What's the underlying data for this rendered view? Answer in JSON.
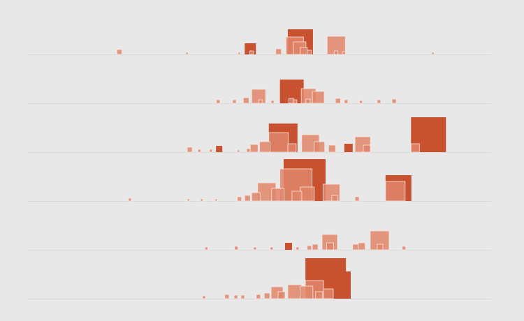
{
  "chart_data": [
    {
      "type": "square-strip",
      "xlim": [
        0,
        100
      ],
      "ylim": [
        0,
        70
      ],
      "series": [
        {
          "color": "#c8522f",
          "x": [
            56.1,
            46.8
          ],
          "values": [
            36,
            16
          ]
        },
        {
          "color": "#e0856a",
          "x": [
            64.6,
            55.7,
            57.3,
            19.2,
            53.5,
            58.8,
            60.3,
            47.9,
            66.1,
            67.9,
            34.1,
            87.2,
            45.4
          ],
          "values": [
            26,
            25,
            18,
            7,
            8,
            10,
            6,
            5,
            5,
            4,
            3,
            3,
            3
          ]
        }
      ]
    },
    {
      "type": "square-strip",
      "xlim": [
        0,
        100
      ],
      "ylim": [
        0,
        70
      ],
      "series": [
        {
          "color": "#c8522f",
          "x": [
            54.4
          ],
          "values": [
            34
          ]
        },
        {
          "color": "#e0856a",
          "x": [
            59,
            48.3,
            61.4,
            46.5,
            66.4,
            56.3,
            78.6,
            60,
            40.7,
            44.2,
            68.3,
            75.4,
            57.3,
            49.8,
            71.6,
            52.5
          ],
          "values": [
            21,
            20,
            17,
            8,
            7,
            7,
            6,
            6,
            5,
            5,
            5,
            5,
            5,
            5,
            4,
            4
          ]
        }
      ]
    },
    {
      "type": "square-strip",
      "xlim": [
        0,
        100
      ],
      "ylim": [
        0,
        70
      ],
      "series": [
        {
          "color": "#c8522f",
          "x": [
            82.7,
            52,
            68.3,
            40.6
          ],
          "values": [
            50,
            41,
            12,
            9
          ]
        },
        {
          "color": "#e0856a",
          "x": [
            52,
            59.1,
            70.6,
            50,
            61.8,
            82.7,
            56.1,
            48,
            64.9,
            72.4,
            34.4,
            47.2,
            36.7,
            39.2,
            45.2
          ],
          "values": [
            28,
            25,
            22,
            15,
            15,
            12,
            12,
            11,
            10,
            10,
            7,
            5,
            4,
            4,
            3
          ]
        }
      ]
    },
    {
      "type": "square-strip",
      "xlim": [
        0,
        100
      ],
      "ylim": [
        0,
        70
      ],
      "series": [
        {
          "color": "#c8522f",
          "x": [
            55.2,
            77.2
          ],
          "values": [
            60,
            37
          ]
        },
        {
          "color": "#e0856a",
          "x": [
            54.4,
            77.2,
            49.6,
            63.7,
            58.8,
            52.6,
            57,
            48.3,
            46.8,
            65.6,
            45.2,
            70.6,
            21.7,
            34.4,
            37.3,
            40.4
          ],
          "values": [
            46,
            28,
            26,
            24,
            20,
            18,
            14,
            12,
            8,
            8,
            6,
            6,
            4,
            3,
            3,
            3
          ]
        }
      ]
    },
    {
      "type": "square-strip",
      "xlim": [
        0,
        100
      ],
      "ylim": [
        0,
        70
      ],
      "series": [
        {
          "color": "#c8522f",
          "x": [
            55.5
          ],
          "values": [
            10
          ]
        },
        {
          "color": "#e0856a",
          "x": [
            73.9,
            63.5,
            71.3,
            64.5,
            61.4,
            70.1,
            75.4,
            60.3,
            44.6,
            80.8,
            38.2,
            48.7,
            52.3,
            57.9
          ],
          "values": [
            27,
            22,
            10,
            10,
            8,
            8,
            8,
            6,
            5,
            5,
            4,
            4,
            4,
            4
          ]
        }
      ]
    },
    {
      "type": "square-strip",
      "xlim": [
        0,
        100
      ],
      "ylim": [
        0,
        70
      ],
      "series": [
        {
          "color": "#c8522f",
          "x": [
            59.9,
            63.8
          ],
          "values": [
            58,
            39
          ]
        },
        {
          "color": "#e0856a",
          "x": [
            59.9,
            56.1,
            58.8,
            52.5,
            63.8,
            54,
            62.1,
            51,
            42.5,
            49.3,
            44.5,
            46,
            37.7
          ],
          "values": [
            26,
            20,
            18,
            17,
            14,
            10,
            10,
            8,
            6,
            6,
            5,
            5,
            4
          ]
        }
      ]
    }
  ]
}
